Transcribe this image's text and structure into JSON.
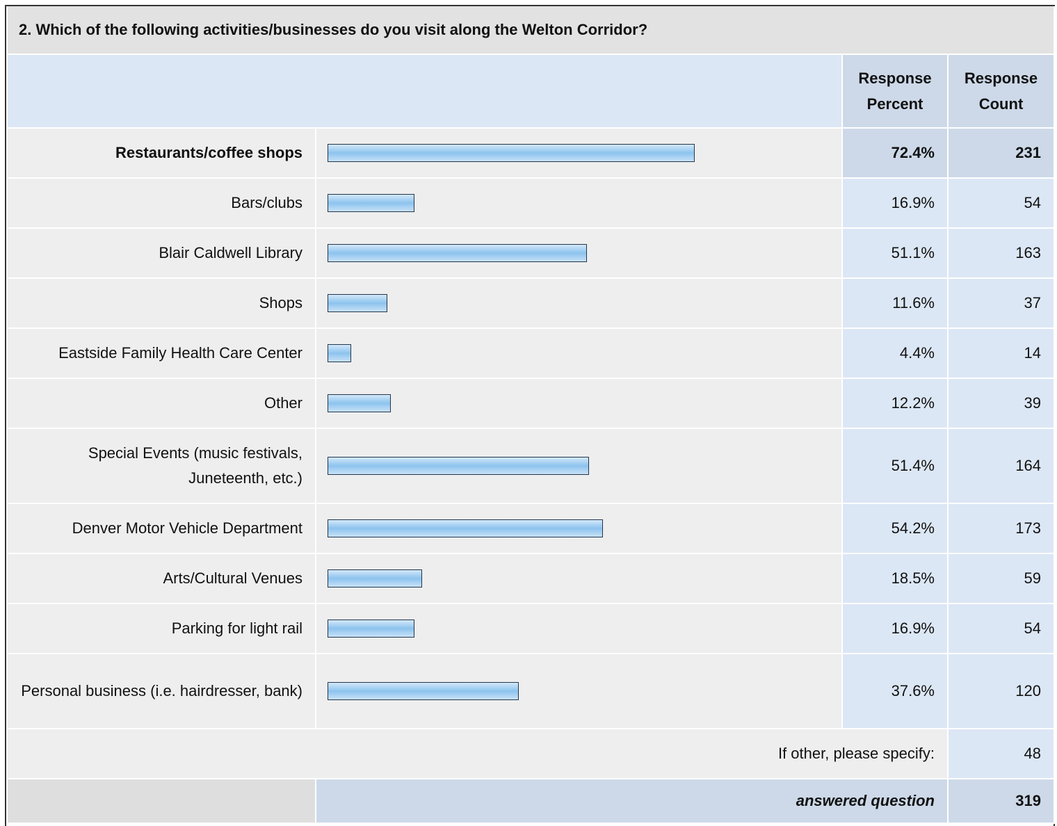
{
  "title": "2. Which of the following activities/businesses do you visit along the Welton Corridor?",
  "columns": [
    "Response Percent",
    "Response Count"
  ],
  "rows": [
    {
      "label": "Restaurants/coffee shops",
      "percent": 72.4,
      "percent_label": "72.4%",
      "count": 231
    },
    {
      "label": "Bars/clubs",
      "percent": 16.9,
      "percent_label": "16.9%",
      "count": 54
    },
    {
      "label": "Blair Caldwell Library",
      "percent": 51.1,
      "percent_label": "51.1%",
      "count": 163
    },
    {
      "label": "Shops",
      "percent": 11.6,
      "percent_label": "11.6%",
      "count": 37
    },
    {
      "label": "Eastside Family Health Care Center",
      "percent": 4.4,
      "percent_label": "4.4%",
      "count": 14
    },
    {
      "label": "Other",
      "percent": 12.2,
      "percent_label": "12.2%",
      "count": 39
    },
    {
      "label": "Special Events (music festivals, Juneteenth, etc.)",
      "percent": 51.4,
      "percent_label": "51.4%",
      "count": 164
    },
    {
      "label": "Denver Motor Vehicle Department",
      "percent": 54.2,
      "percent_label": "54.2%",
      "count": 173
    },
    {
      "label": "Arts/Cultural Venues",
      "percent": 18.5,
      "percent_label": "18.5%",
      "count": 59
    },
    {
      "label": "Parking for light rail",
      "percent": 16.9,
      "percent_label": "16.9%",
      "count": 54
    },
    {
      "label": "Personal business (i.e. hairdresser, bank)",
      "percent": 37.6,
      "percent_label": "37.6%",
      "count": 120
    }
  ],
  "other": {
    "label": "If other, please specify:",
    "count": 48
  },
  "answered": {
    "label": "answered question",
    "count": 319
  }
}
